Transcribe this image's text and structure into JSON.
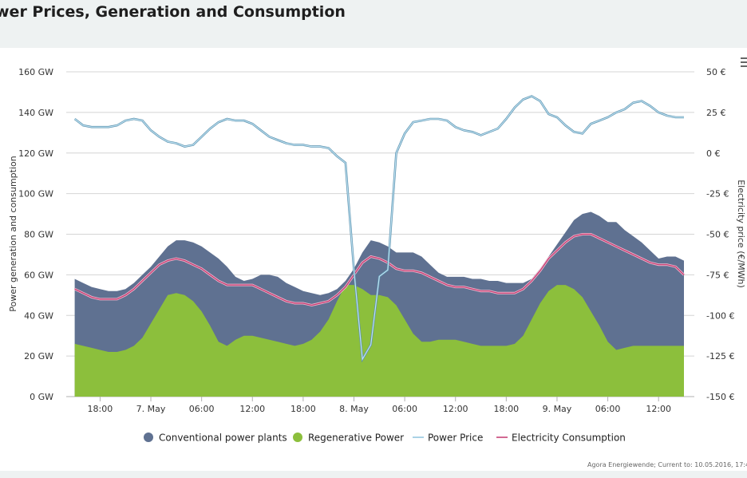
{
  "page": {
    "title": "wer Prices, Generation and Consumption",
    "credits": "Agora Energiewende; Current to: 10.05.2016, 17:4"
  },
  "colors": {
    "conventional": "#5f7191",
    "regenerative": "#8cbf3c",
    "price": "#8ec3de",
    "consumption": "#c2386f",
    "grid": "#d4d4d4"
  },
  "icons": {
    "menu": "hamburger-menu-icon"
  },
  "chart_data": {
    "type": "area",
    "title": "wer Prices, Generation and Consumption",
    "ylabel": "Power generation and consumption",
    "y2label": "Electricity price (€/MWh)",
    "ylim": [
      0,
      160
    ],
    "y2lim": [
      -150,
      50
    ],
    "yticks": [
      "0 GW",
      "20 GW",
      "40 GW",
      "60 GW",
      "80 GW",
      "100 GW",
      "120 GW",
      "140 GW",
      "160 GW"
    ],
    "y2ticks": [
      "-150 €",
      "-125 €",
      "-100 €",
      "-75 €",
      "-50 €",
      "-25 €",
      "0 €",
      "25 €",
      "50 €"
    ],
    "grid": true,
    "legend_position": "bottom",
    "x_start_hour": 14,
    "x_end_hour": 78,
    "xticks": [
      {
        "hour": 18,
        "label": "18:00"
      },
      {
        "hour": 24,
        "label": "7. May"
      },
      {
        "hour": 30,
        "label": "06:00"
      },
      {
        "hour": 36,
        "label": "12:00"
      },
      {
        "hour": 42,
        "label": "18:00"
      },
      {
        "hour": 48,
        "label": "8. May"
      },
      {
        "hour": 54,
        "label": "06:00"
      },
      {
        "hour": 60,
        "label": "12:00"
      },
      {
        "hour": 66,
        "label": "18:00"
      },
      {
        "hour": 72,
        "label": "9. May"
      },
      {
        "hour": 78,
        "label": "06:00"
      },
      {
        "hour": 84,
        "label": "12:00"
      }
    ],
    "x_hours": [
      15,
      16,
      17,
      18,
      19,
      20,
      21,
      22,
      23,
      24,
      25,
      26,
      27,
      28,
      29,
      30,
      31,
      32,
      33,
      34,
      35,
      36,
      37,
      38,
      39,
      40,
      41,
      42,
      43,
      44,
      45,
      46,
      47,
      48,
      49,
      50,
      51,
      52,
      53,
      54,
      55,
      56,
      57,
      58,
      59,
      60,
      61,
      62,
      63,
      64,
      65,
      66,
      67,
      68,
      69,
      70,
      71,
      72,
      73,
      74,
      75,
      76,
      77,
      78,
      79,
      80,
      81,
      82,
      83,
      84,
      85,
      86,
      87
    ],
    "series": [
      {
        "name": "Conventional power plants",
        "kind": "area",
        "values": [
          58,
          56,
          54,
          53,
          52,
          52,
          53,
          56,
          60,
          64,
          69,
          74,
          77,
          77,
          76,
          74,
          71,
          68,
          64,
          59,
          57,
          58,
          60,
          60,
          59,
          56,
          54,
          52,
          51,
          50,
          51,
          53,
          57,
          63,
          71,
          77,
          76,
          74,
          71,
          71,
          71,
          69,
          65,
          61,
          59,
          59,
          59,
          58,
          58,
          57,
          57,
          56,
          56,
          56,
          58,
          63,
          69,
          75,
          81,
          87,
          90,
          91,
          89,
          86,
          86,
          82,
          79,
          76,
          72,
          68,
          69,
          69,
          67
        ]
      },
      {
        "name": "Regenerative Power",
        "kind": "area",
        "values": [
          26,
          25,
          24,
          23,
          22,
          22,
          23,
          25,
          29,
          36,
          43,
          50,
          51,
          50,
          47,
          42,
          35,
          27,
          25,
          28,
          30,
          30,
          29,
          28,
          27,
          26,
          25,
          26,
          28,
          32,
          38,
          47,
          55,
          55,
          53,
          50,
          50,
          49,
          45,
          38,
          31,
          27,
          27,
          28,
          28,
          28,
          27,
          26,
          25,
          25,
          25,
          25,
          26,
          30,
          38,
          46,
          52,
          55,
          55,
          53,
          49,
          42,
          35,
          27,
          23,
          24,
          25,
          25,
          25,
          25,
          25,
          25,
          25
        ]
      },
      {
        "name": "Power Price",
        "kind": "line",
        "axis": "right",
        "values": [
          21,
          17,
          16,
          16,
          16,
          17,
          20,
          21,
          20,
          14,
          10,
          7,
          6,
          4,
          5,
          10,
          15,
          19,
          21,
          20,
          20,
          18,
          14,
          10,
          8,
          6,
          5,
          5,
          4,
          4,
          3,
          -2,
          -6,
          -72,
          -127,
          -118,
          -76,
          -72,
          0,
          12,
          19,
          20,
          21,
          21,
          20,
          16,
          14,
          13,
          11,
          13,
          15,
          21,
          28,
          33,
          35,
          32,
          24,
          22,
          17,
          13,
          12,
          18,
          20,
          22,
          25,
          27,
          31,
          32,
          29,
          25,
          23,
          22,
          22
        ]
      },
      {
        "name": "Electricity Consumption",
        "kind": "line",
        "values": [
          53,
          51,
          49,
          48,
          48,
          48,
          50,
          53,
          57,
          61,
          65,
          67,
          68,
          67,
          65,
          63,
          60,
          57,
          55,
          55,
          55,
          55,
          53,
          51,
          49,
          47,
          46,
          46,
          45,
          46,
          47,
          50,
          54,
          60,
          66,
          69,
          68,
          66,
          63,
          62,
          62,
          61,
          59,
          57,
          55,
          54,
          54,
          53,
          52,
          52,
          51,
          51,
          51,
          53,
          57,
          62,
          68,
          72,
          76,
          79,
          80,
          80,
          78,
          76,
          74,
          72,
          70,
          68,
          66,
          65,
          65,
          64,
          60
        ]
      }
    ]
  }
}
